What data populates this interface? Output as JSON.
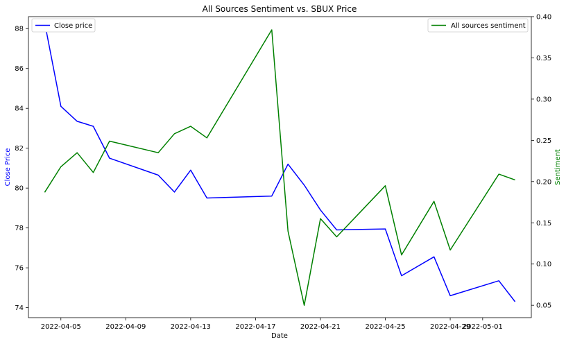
{
  "chart_data": {
    "type": "line",
    "title": "All Sources Sentiment vs. SBUX Price",
    "xlabel": "Date",
    "ylabel_left": "Close Price",
    "ylabel_right": "Sentiment",
    "x_tick_labels": [
      "2022-04-05",
      "2022-04-09",
      "2022-04-13",
      "2022-04-17",
      "2022-04-21",
      "2022-04-25",
      "2022-04-29",
      "2022-05-01"
    ],
    "y_left_ticks": [
      74,
      76,
      78,
      80,
      82,
      84,
      86,
      88
    ],
    "y_right_ticks": [
      0.05,
      0.1,
      0.15,
      0.2,
      0.25,
      0.3,
      0.35,
      0.4
    ],
    "ylim_left": [
      73.5,
      88.6
    ],
    "ylim_right": [
      0.035,
      0.4
    ],
    "xlim": [
      "2022-04-03",
      "2022-05-04"
    ],
    "legend_left_placement": "top-left",
    "legend_right_placement": "top-right",
    "colors": {
      "price": "#0000ff",
      "sentiment": "#008000",
      "ylabel_left": "#0000ff",
      "ylabel_right": "#008000"
    },
    "series": [
      {
        "name": "Close price",
        "axis": "left",
        "x": [
          "2022-04-04",
          "2022-04-05",
          "2022-04-06",
          "2022-04-07",
          "2022-04-08",
          "2022-04-11",
          "2022-04-12",
          "2022-04-13",
          "2022-04-14",
          "2022-04-18",
          "2022-04-19",
          "2022-04-20",
          "2022-04-21",
          "2022-04-22",
          "2022-04-25",
          "2022-04-26",
          "2022-04-28",
          "2022-04-29",
          "2022-05-02",
          "2022-05-03"
        ],
        "values": [
          88.3,
          84.1,
          83.35,
          83.1,
          81.5,
          80.65,
          79.8,
          80.9,
          79.5,
          79.6,
          81.2,
          80.15,
          78.9,
          77.9,
          77.95,
          75.6,
          76.55,
          74.6,
          75.35,
          74.3
        ]
      },
      {
        "name": "All sources sentiment",
        "axis": "right",
        "x": [
          "2022-04-04",
          "2022-04-05",
          "2022-04-06",
          "2022-04-07",
          "2022-04-08",
          "2022-04-11",
          "2022-04-12",
          "2022-04-13",
          "2022-04-14",
          "2022-04-18",
          "2022-04-19",
          "2022-04-20",
          "2022-04-21",
          "2022-04-22",
          "2022-04-25",
          "2022-04-26",
          "2022-04-28",
          "2022-04-29",
          "2022-05-02",
          "2022-05-03"
        ],
        "values": [
          0.187,
          0.218,
          0.235,
          0.211,
          0.249,
          0.235,
          0.258,
          0.267,
          0.253,
          0.384,
          0.14,
          0.05,
          0.155,
          0.133,
          0.195,
          0.111,
          0.176,
          0.117,
          0.209,
          0.202
        ]
      }
    ]
  }
}
